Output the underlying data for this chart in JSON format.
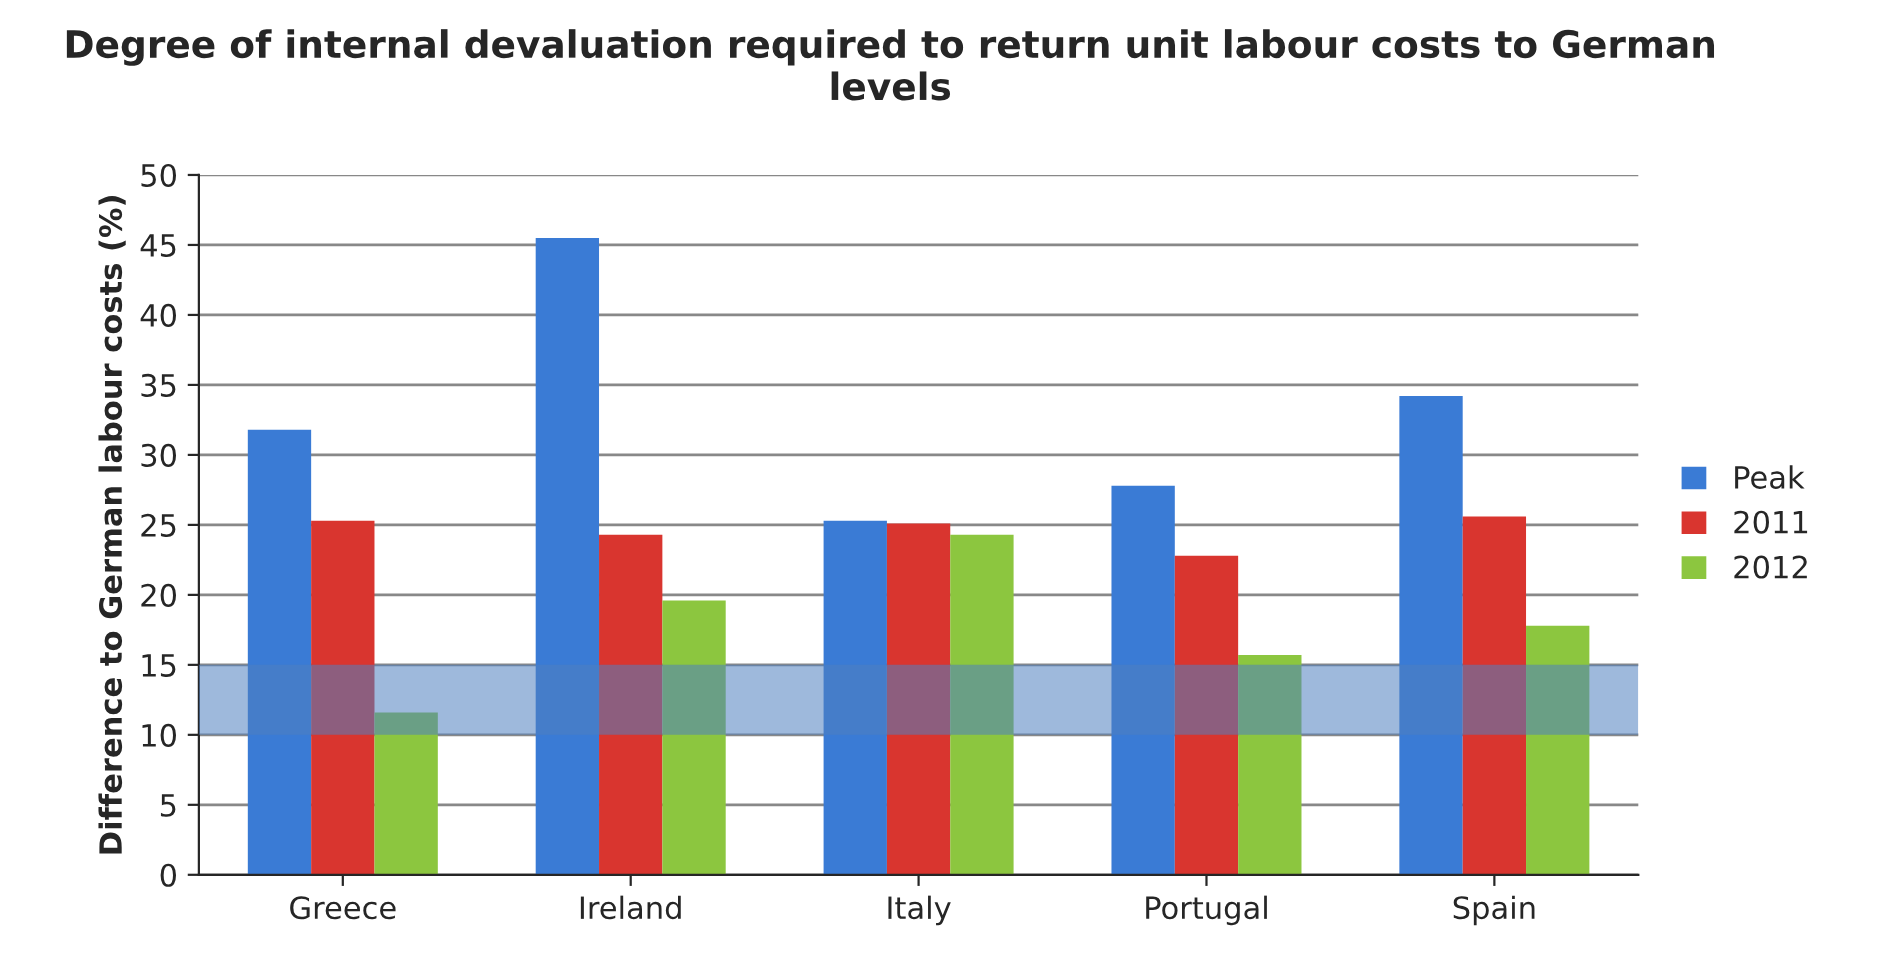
{
  "chart_data": {
    "type": "bar",
    "title": "Degree of internal devaluation required to return unit labour costs to German levels",
    "ylabel": "Difference to German labour costs (%)",
    "categories": [
      "Greece",
      "Ireland",
      "Italy",
      "Portugal",
      "Spain"
    ],
    "series": [
      {
        "name": "Peak",
        "color": "#3a7bd5",
        "values": [
          31.8,
          45.5,
          25.3,
          27.8,
          34.2
        ]
      },
      {
        "name": "2011",
        "color": "#d9352f",
        "values": [
          25.3,
          24.3,
          25.1,
          22.8,
          25.6
        ]
      },
      {
        "name": "2012",
        "color": "#8cc63f",
        "values": [
          11.6,
          19.6,
          24.3,
          15.7,
          17.8
        ]
      }
    ],
    "ylim": [
      0,
      50
    ],
    "yticks": [
      0,
      5,
      10,
      15,
      20,
      25,
      30,
      35,
      40,
      45,
      50
    ],
    "bands": [
      {
        "axis": "y",
        "from": 10,
        "to": 15,
        "color": "#4f7fbf"
      }
    ],
    "grid": "y",
    "legend": "right"
  }
}
